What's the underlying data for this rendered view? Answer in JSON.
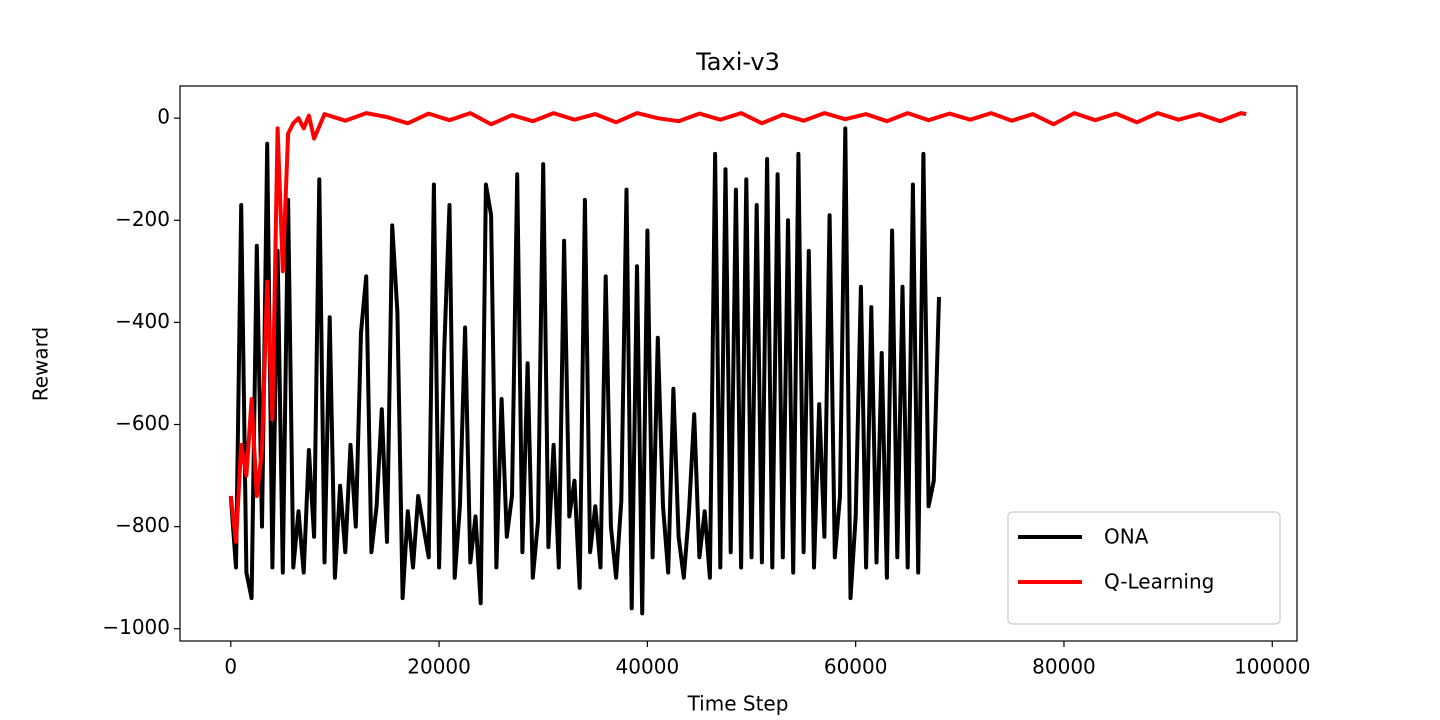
{
  "chart_data": {
    "type": "line",
    "title": "Taxi-v3",
    "x_label": "Time Step",
    "y_label": "Reward",
    "xlim": [
      -4875,
      102375
    ],
    "ylim": [
      -1024,
      63
    ],
    "xticks": [
      0,
      20000,
      40000,
      60000,
      80000,
      100000
    ],
    "yticks": [
      {
        "value": -1000,
        "label": "−1000"
      },
      {
        "value": -800,
        "label": "−800"
      },
      {
        "value": -600,
        "label": "−600"
      },
      {
        "value": -400,
        "label": "−400"
      },
      {
        "value": -200,
        "label": "−200"
      },
      0
    ],
    "legend": "lower right",
    "series": [
      {
        "name": "ONA",
        "color": "#000000",
        "x": [
          0,
          500,
          1000,
          1500,
          2000,
          2500,
          3000,
          3500,
          4000,
          4500,
          5000,
          5500,
          6000,
          6500,
          7000,
          7500,
          8000,
          8500,
          9000,
          9500,
          10000,
          10500,
          11000,
          11500,
          12000,
          12500,
          13000,
          13500,
          14000,
          14500,
          15000,
          15500,
          16000,
          16500,
          17000,
          17500,
          18000,
          18500,
          19000,
          19500,
          20000,
          20500,
          21000,
          21500,
          22000,
          22500,
          23000,
          23500,
          24000,
          24500,
          25000,
          25500,
          26000,
          26500,
          27000,
          27500,
          28000,
          28500,
          29000,
          29500,
          30000,
          30500,
          31000,
          31500,
          32000,
          32500,
          33000,
          33500,
          34000,
          34500,
          35000,
          35500,
          36000,
          36500,
          37000,
          37500,
          38000,
          38500,
          39000,
          39500,
          40000,
          40500,
          41000,
          41500,
          42000,
          42500,
          43000,
          43500,
          44000,
          44500,
          45000,
          45500,
          46000,
          46500,
          47000,
          47500,
          48000,
          48500,
          49000,
          49500,
          50000,
          50500,
          51000,
          51500,
          52000,
          52500,
          53000,
          53500,
          54000,
          54500,
          55000,
          55500,
          56000,
          56500,
          57000,
          57500,
          58000,
          58500,
          59000,
          59500,
          60000,
          60500,
          61000,
          61500,
          62000,
          62500,
          63000,
          63500,
          64000,
          64500,
          65000,
          65500,
          66000,
          66500,
          67000,
          67500,
          68000
        ],
        "values": [
          -740,
          -880,
          -170,
          -890,
          -940,
          -250,
          -800,
          -50,
          -880,
          -260,
          -890,
          -160,
          -880,
          -770,
          -890,
          -650,
          -820,
          -120,
          -870,
          -390,
          -900,
          -720,
          -850,
          -640,
          -800,
          -420,
          -310,
          -850,
          -760,
          -570,
          -830,
          -210,
          -380,
          -940,
          -770,
          -880,
          -740,
          -800,
          -860,
          -130,
          -880,
          -450,
          -170,
          -900,
          -760,
          -410,
          -870,
          -780,
          -950,
          -130,
          -190,
          -880,
          -550,
          -820,
          -740,
          -110,
          -850,
          -480,
          -900,
          -790,
          -90,
          -840,
          -640,
          -880,
          -240,
          -780,
          -710,
          -920,
          -160,
          -850,
          -760,
          -880,
          -310,
          -800,
          -900,
          -750,
          -140,
          -960,
          -290,
          -970,
          -220,
          -860,
          -430,
          -760,
          -890,
          -530,
          -820,
          -900,
          -770,
          -580,
          -860,
          -770,
          -900,
          -70,
          -880,
          -100,
          -850,
          -140,
          -880,
          -120,
          -860,
          -170,
          -870,
          -80,
          -880,
          -110,
          -860,
          -200,
          -890,
          -70,
          -850,
          -260,
          -880,
          -560,
          -820,
          -190,
          -860,
          -740,
          -20,
          -940,
          -780,
          -330,
          -880,
          -370,
          -870,
          -460,
          -900,
          -220,
          -860,
          -330,
          -880,
          -130,
          -890,
          -70,
          -760,
          -710,
          -350
        ]
      },
      {
        "name": "Q-Learning",
        "color": "#ff0000",
        "x": [
          0,
          500,
          1000,
          1500,
          2000,
          2500,
          3000,
          3500,
          4000,
          4500,
          5000,
          5500,
          6000,
          6500,
          7000,
          7500,
          8000,
          9000,
          11000,
          13000,
          15000,
          17000,
          19000,
          21000,
          23000,
          25000,
          27000,
          29000,
          31000,
          33000,
          35000,
          37000,
          39000,
          41000,
          43000,
          45000,
          47000,
          49000,
          51000,
          53000,
          55000,
          57000,
          59000,
          61000,
          63000,
          65000,
          67000,
          69000,
          71000,
          73000,
          75000,
          77000,
          79000,
          81000,
          83000,
          85000,
          87000,
          89000,
          91000,
          93000,
          95000,
          97000,
          97500
        ],
        "values": [
          -740,
          -830,
          -640,
          -700,
          -550,
          -740,
          -650,
          -320,
          -590,
          -20,
          -300,
          -30,
          -10,
          0,
          -20,
          5,
          -40,
          8,
          -5,
          10,
          2,
          -10,
          9,
          -4,
          10,
          -12,
          6,
          -6,
          10,
          -3,
          8,
          -8,
          10,
          0,
          -6,
          9,
          -3,
          10,
          -10,
          7,
          -5,
          10,
          -2,
          8,
          -6,
          10,
          -4,
          9,
          -3,
          10,
          -5,
          8,
          -12,
          10,
          -4,
          9,
          -8,
          10,
          -3,
          8,
          -6,
          10,
          8
        ]
      }
    ]
  }
}
